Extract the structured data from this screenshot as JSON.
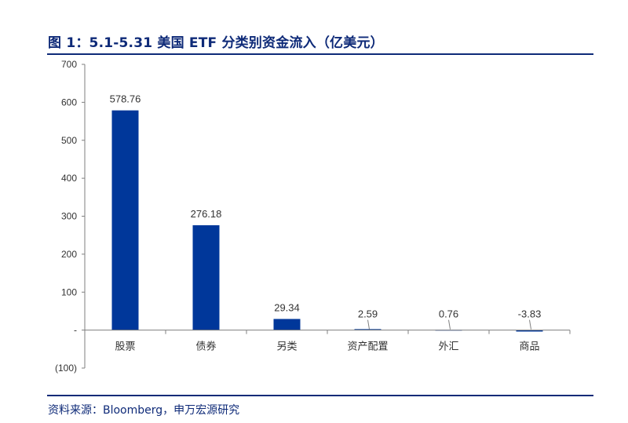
{
  "title": "图 1：5.1-5.31 美国 ETF 分类别资金流入（亿美元）",
  "source": "资料来源：Bloomberg，申万宏源研究",
  "colors": {
    "bar": "#00379a",
    "title": "#0e2a78",
    "axis": "#7f7f7f",
    "text": "#333333"
  },
  "chart_data": {
    "type": "bar",
    "title": "",
    "xlabel": "",
    "ylabel": "",
    "categories": [
      "股票",
      "债券",
      "另类",
      "资产配置",
      "外汇",
      "商品"
    ],
    "values": [
      578.76,
      276.18,
      29.34,
      2.59,
      0.76,
      -3.83
    ],
    "value_labels": [
      "578.76",
      "276.18",
      "29.34",
      "2.59",
      "0.76",
      "-3.83"
    ],
    "ylim": [
      -100,
      700
    ],
    "yticks": [
      700,
      600,
      500,
      400,
      300,
      200,
      100,
      0,
      -100
    ],
    "ytick_labels": [
      "700",
      "600",
      "500",
      "400",
      "300",
      "200",
      "100",
      "-",
      "(100)"
    ],
    "grid": false,
    "legend": "none"
  }
}
